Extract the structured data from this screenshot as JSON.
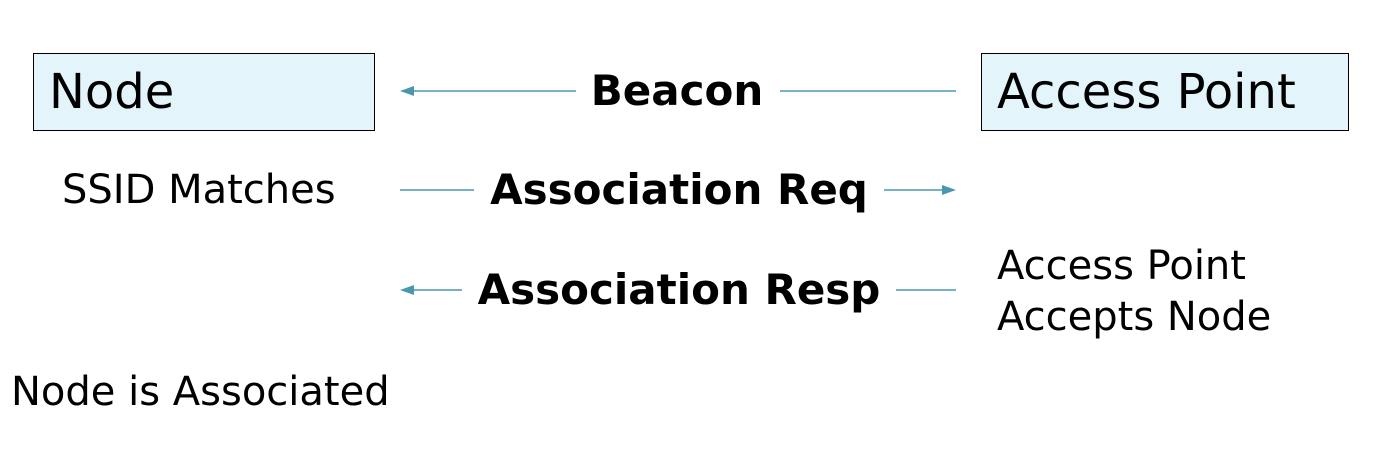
{
  "colors": {
    "box_fill": "#e3f4fa",
    "arrow": "#4a98b0"
  },
  "node": {
    "title": "Node"
  },
  "access_point": {
    "title": "Access Point"
  },
  "messages": [
    {
      "label": "Beacon",
      "direction": "to-node"
    },
    {
      "label": "Association Req",
      "direction": "to-access-point"
    },
    {
      "label": "Association Resp",
      "direction": "to-node"
    }
  ],
  "notes": {
    "ssid": "SSID Matches",
    "ap_accepts_line1": "Access Point",
    "ap_accepts_line2": "Accepts Node",
    "associated": "Node is Associated"
  }
}
